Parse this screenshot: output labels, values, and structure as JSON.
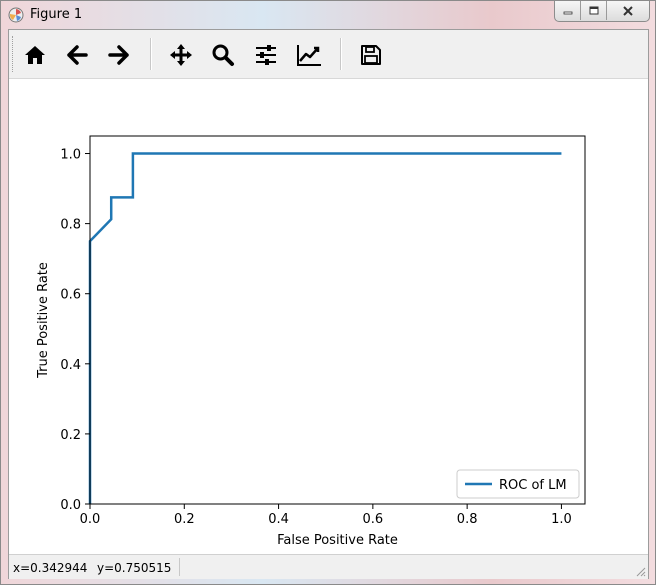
{
  "window": {
    "title": "Figure 1",
    "buttons": [
      "minimize-icon",
      "maximize-icon",
      "close-icon"
    ]
  },
  "toolbar": {
    "tools": [
      {
        "name": "home",
        "icon": "home-icon"
      },
      {
        "name": "back",
        "icon": "arrow-left-icon"
      },
      {
        "name": "forward",
        "icon": "arrow-right-icon"
      },
      {
        "name": "pan",
        "icon": "move-icon"
      },
      {
        "name": "zoom",
        "icon": "magnifier-icon"
      },
      {
        "name": "subplots",
        "icon": "sliders-icon"
      },
      {
        "name": "edit-axis",
        "icon": "line-chart-icon"
      },
      {
        "name": "save",
        "icon": "floppy-disk-icon"
      }
    ]
  },
  "status": {
    "x_readout": "x=0.342944",
    "y_readout": "y=0.750515"
  },
  "colors": {
    "line": "#1f77b4",
    "axes": "#000000",
    "toolbar_bg": "#f0f0f0"
  },
  "chart_data": {
    "type": "line",
    "xlabel": "False Positive Rate",
    "ylabel": "True Positive Rate",
    "xlim": [
      0.0,
      1.05
    ],
    "ylim": [
      0.0,
      1.05
    ],
    "xticks": [
      "0.0",
      "0.2",
      "0.4",
      "0.6",
      "0.8",
      "1.0"
    ],
    "yticks": [
      "0.0",
      "0.2",
      "0.4",
      "0.6",
      "0.8",
      "1.0"
    ],
    "grid": false,
    "legend": "lower right",
    "series": [
      {
        "name": "ROC of LM",
        "x": [
          0.0,
          0.0,
          0.045,
          0.045,
          0.091,
          0.091,
          1.0
        ],
        "y": [
          0.0,
          0.75,
          0.8125,
          0.875,
          0.875,
          1.0,
          1.0
        ]
      }
    ]
  }
}
